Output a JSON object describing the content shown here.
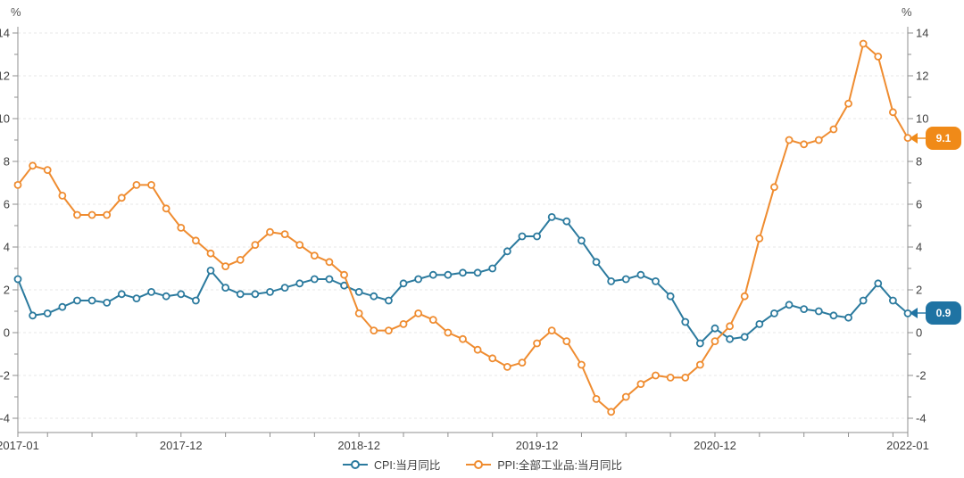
{
  "chart": {
    "y_axis_unit": "%",
    "end_labels": {
      "cpi": "0.9",
      "ppi": "9.1"
    }
  },
  "chart_data": {
    "type": "line",
    "title": "",
    "xlabel": "",
    "ylabel": "%",
    "ylim": [
      -4,
      14
    ],
    "y_ticks": [
      14,
      12,
      10,
      8,
      6,
      4,
      2,
      0,
      -2,
      -4
    ],
    "grid": "horizontal-dashed",
    "legend_position": "bottom-center",
    "dual_y_axis": true,
    "x": [
      "2017-01",
      "2017-02",
      "2017-03",
      "2017-04",
      "2017-05",
      "2017-06",
      "2017-07",
      "2017-08",
      "2017-09",
      "2017-10",
      "2017-11",
      "2017-12",
      "2018-01",
      "2018-02",
      "2018-03",
      "2018-04",
      "2018-05",
      "2018-06",
      "2018-07",
      "2018-08",
      "2018-09",
      "2018-10",
      "2018-11",
      "2018-12",
      "2019-01",
      "2019-02",
      "2019-03",
      "2019-04",
      "2019-05",
      "2019-06",
      "2019-07",
      "2019-08",
      "2019-09",
      "2019-10",
      "2019-11",
      "2019-12",
      "2020-01",
      "2020-02",
      "2020-03",
      "2020-04",
      "2020-05",
      "2020-06",
      "2020-07",
      "2020-08",
      "2020-09",
      "2020-10",
      "2020-11",
      "2020-12",
      "2021-01",
      "2021-02",
      "2021-03",
      "2021-04",
      "2021-05",
      "2021-06",
      "2021-07",
      "2021-08",
      "2021-09",
      "2021-10",
      "2021-11",
      "2021-12",
      "2022-01"
    ],
    "x_tick_labels": [
      {
        "index": 0,
        "label": "2017-01"
      },
      {
        "index": 11,
        "label": "2017-12"
      },
      {
        "index": 23,
        "label": "2018-12"
      },
      {
        "index": 35,
        "label": "2019-12"
      },
      {
        "index": 47,
        "label": "2020-12"
      },
      {
        "index": 60,
        "label": "2022-01"
      }
    ],
    "series": [
      {
        "id": "cpi",
        "name": "CPI:当月同比",
        "color": "#2b7a9e",
        "label_color": "#1f73a3",
        "values": [
          2.5,
          0.8,
          0.9,
          1.2,
          1.5,
          1.5,
          1.4,
          1.8,
          1.6,
          1.9,
          1.7,
          1.8,
          1.5,
          2.9,
          2.1,
          1.8,
          1.8,
          1.9,
          2.1,
          2.3,
          2.5,
          2.5,
          2.2,
          1.9,
          1.7,
          1.5,
          2.3,
          2.5,
          2.7,
          2.7,
          2.8,
          2.8,
          3.0,
          3.8,
          4.5,
          4.5,
          5.4,
          5.2,
          4.3,
          3.3,
          2.4,
          2.5,
          2.7,
          2.4,
          1.7,
          0.5,
          -0.5,
          0.2,
          -0.3,
          -0.2,
          0.4,
          0.9,
          1.3,
          1.1,
          1.0,
          0.8,
          0.7,
          1.5,
          2.3,
          1.5,
          0.9
        ]
      },
      {
        "id": "ppi",
        "name": "PPI:全部工业品:当月同比",
        "color": "#ef8c30",
        "label_color": "#f08a18",
        "values": [
          6.9,
          7.8,
          7.6,
          6.4,
          5.5,
          5.5,
          5.5,
          6.3,
          6.9,
          6.9,
          5.8,
          4.9,
          4.3,
          3.7,
          3.1,
          3.4,
          4.1,
          4.7,
          4.6,
          4.1,
          3.6,
          3.3,
          2.7,
          0.9,
          0.1,
          0.1,
          0.4,
          0.9,
          0.6,
          0.0,
          -0.3,
          -0.8,
          -1.2,
          -1.6,
          -1.4,
          -0.5,
          0.1,
          -0.4,
          -1.5,
          -3.1,
          -3.7,
          -3.0,
          -2.4,
          -2.0,
          -2.1,
          -2.1,
          -1.5,
          -0.4,
          0.3,
          1.7,
          4.4,
          6.8,
          9.0,
          8.8,
          9.0,
          9.5,
          10.7,
          13.5,
          12.9,
          10.3,
          9.1
        ]
      }
    ],
    "style": {
      "axis_color": "#8f8f8f",
      "grid_color": "#e7e7e7",
      "tick_label_color": "#3f3f3f",
      "marker_fill": "#ffffff"
    }
  }
}
